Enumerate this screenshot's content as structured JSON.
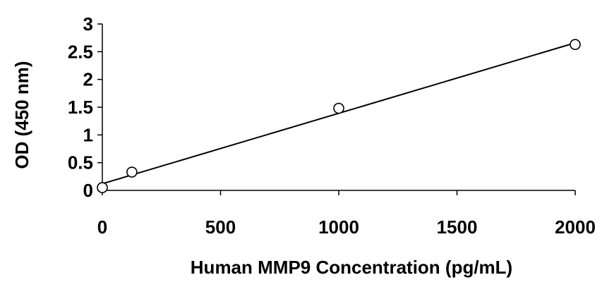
{
  "chart_data": {
    "type": "scatter",
    "title": "",
    "xlabel": "Human  MMP9 Concentration (pg/mL)",
    "ylabel": "OD (450 nm)",
    "xlim": [
      0,
      2000
    ],
    "ylim": [
      0,
      3
    ],
    "xticks": [
      "0",
      "500",
      "1000",
      "1500",
      "2000"
    ],
    "yticks": [
      "0",
      "0.5",
      "1",
      "1.5",
      "2",
      "2.5",
      "3"
    ],
    "grid": false,
    "legend": "none",
    "marker": "open-circle",
    "series": [
      {
        "points": [
          {
            "x": 0,
            "y": 0.05
          },
          {
            "x": 125,
            "y": 0.33
          },
          {
            "x": 1000,
            "y": 1.48
          },
          {
            "x": 2000,
            "y": 2.63
          }
        ]
      }
    ],
    "trendline": {
      "type": "linear",
      "points": [
        {
          "x": 0,
          "y": 0.12
        },
        {
          "x": 2000,
          "y": 2.66
        }
      ]
    },
    "colors": {
      "marks": "#000000",
      "background": "#ffffff"
    }
  }
}
